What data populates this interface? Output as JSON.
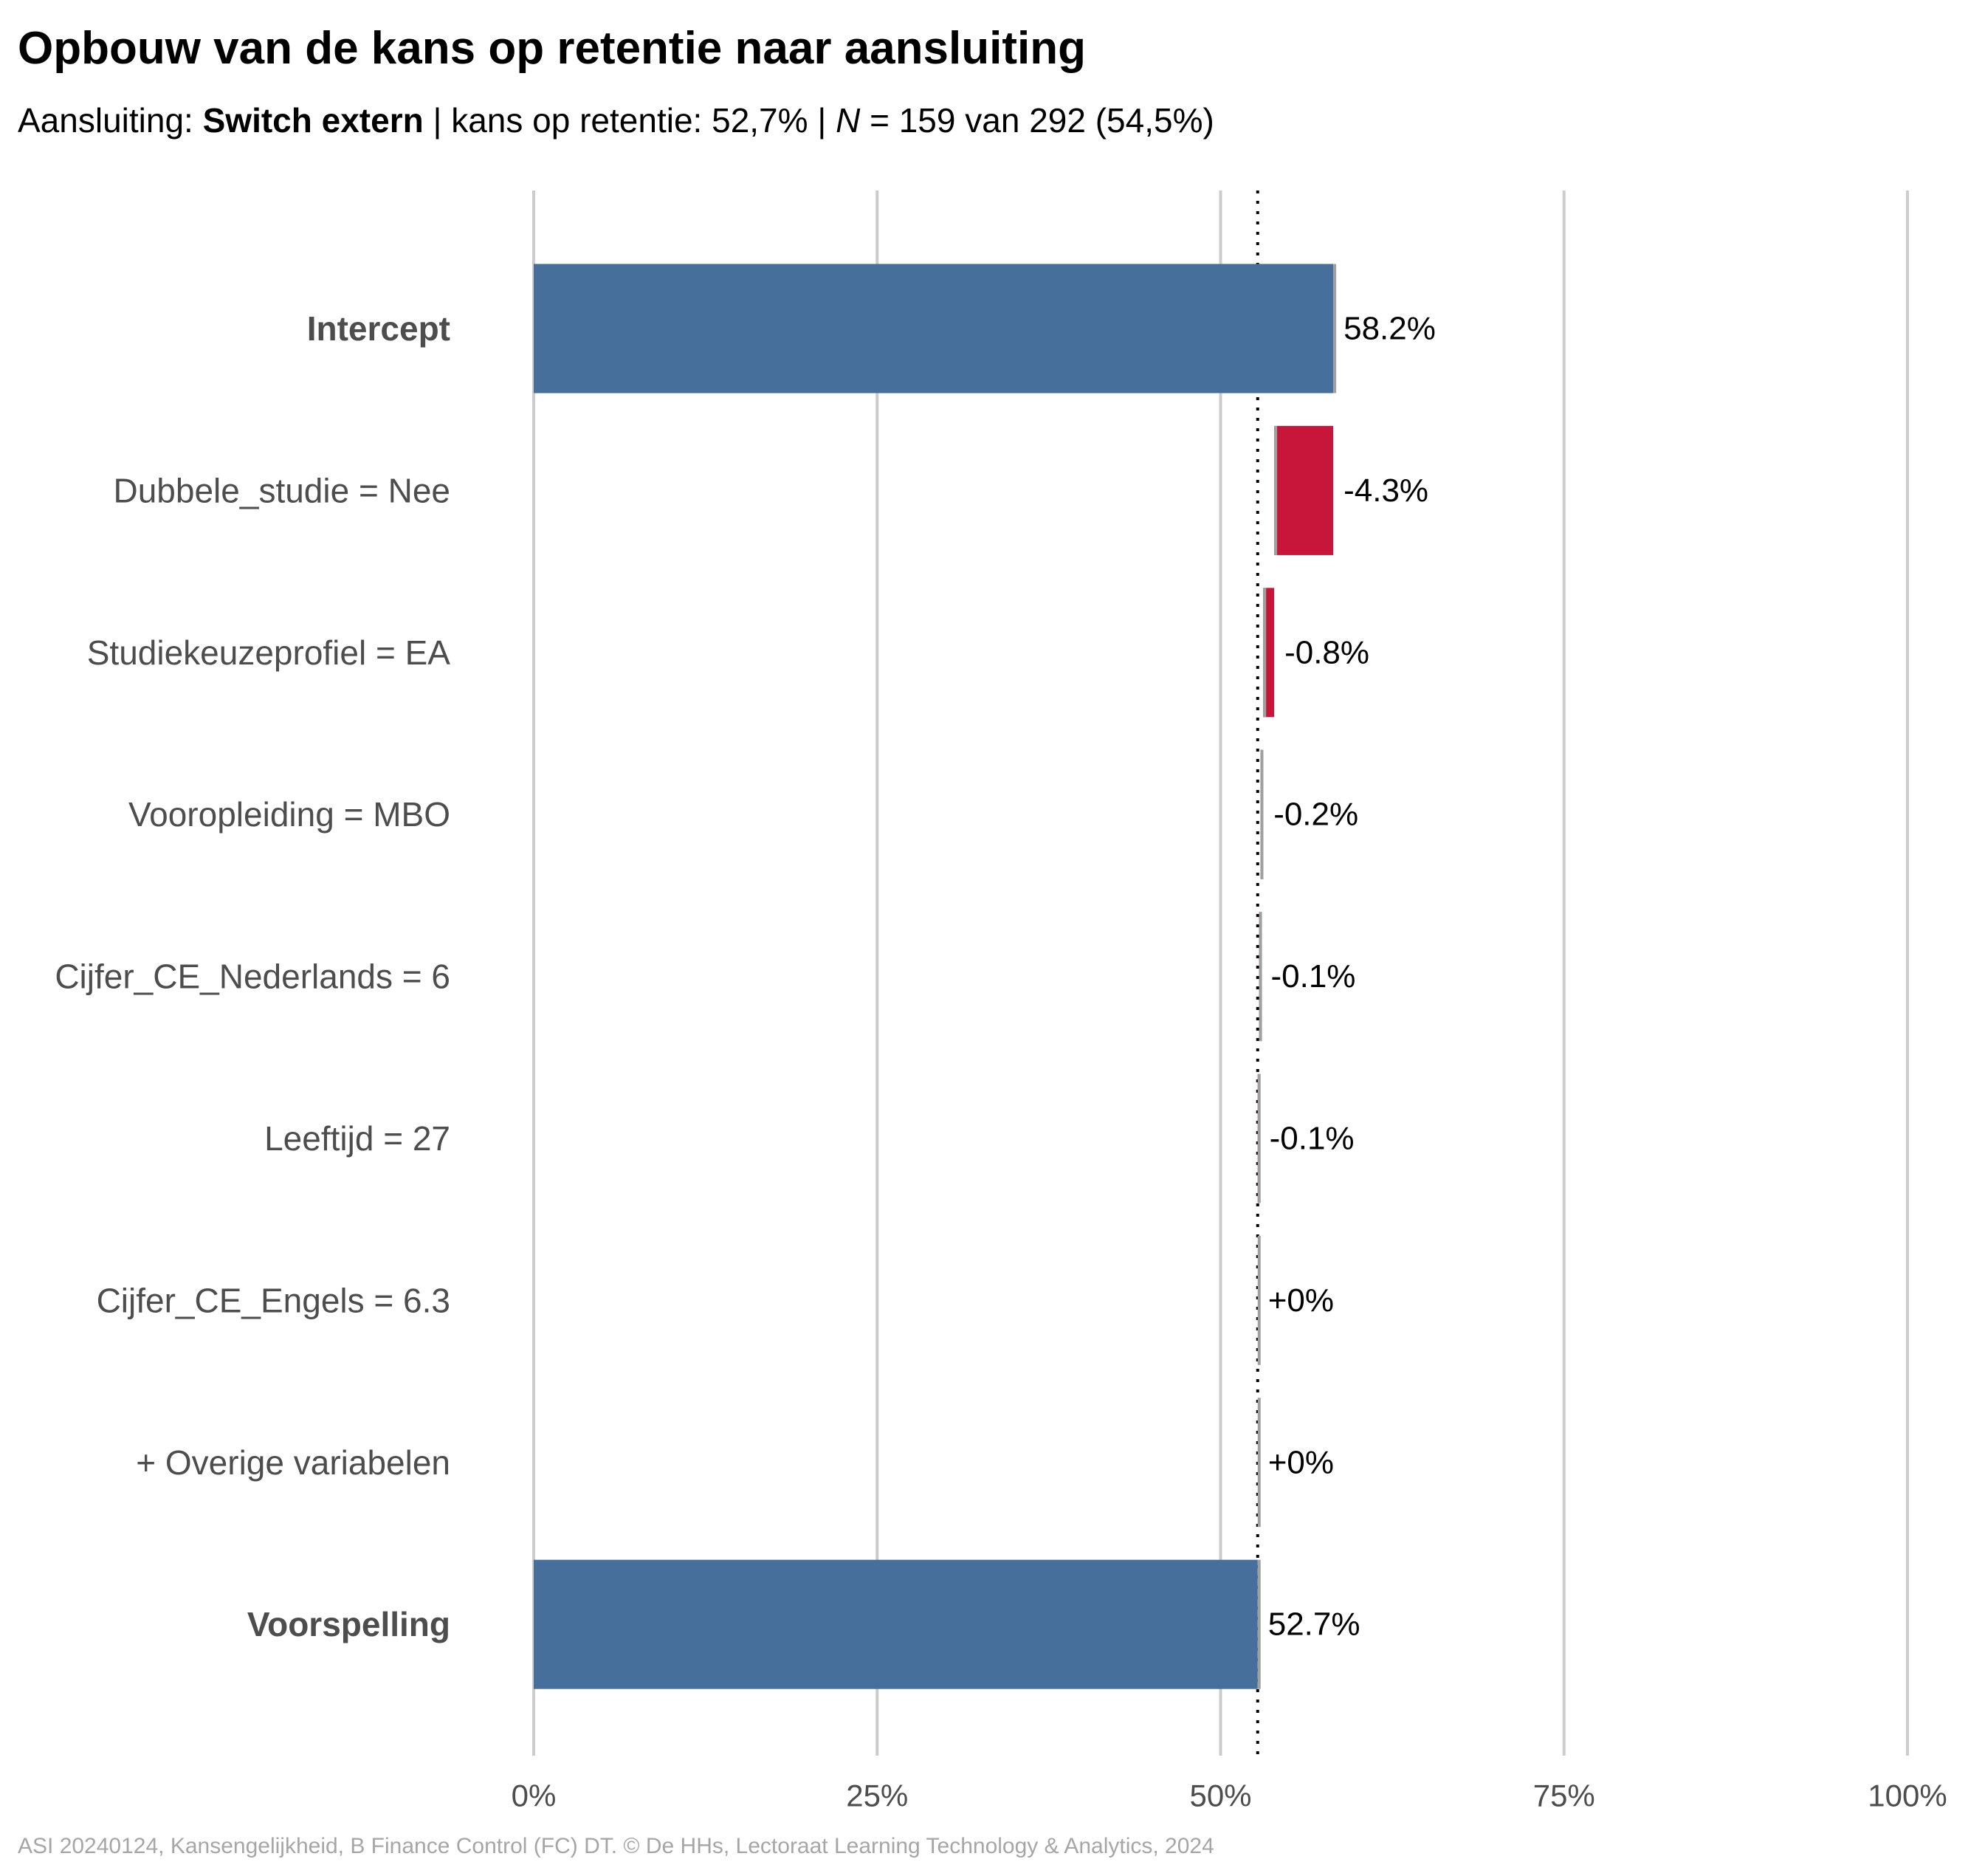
{
  "title": "Opbouw van de kans op retentie naar aansluiting",
  "subtitle": {
    "prefix": "Aansluiting: ",
    "group": "Switch extern",
    "sep1": " | kans op retentie: ",
    "probability": "52,7%",
    "sep2": " | ",
    "n_symbol": "N",
    "n_text": " = 159 van 292 (54,5%)"
  },
  "caption": "ASI 20240124, Kansengelijkheid, B Finance Control (FC) DT. © De HHs, Lectoraat Learning Technology & Analytics, 2024",
  "colors": {
    "base": "#476f9b",
    "negative": "#c8163b",
    "grid": "#cccccc",
    "connector": "#a0a0a0"
  },
  "chart_data": {
    "type": "bar",
    "orientation": "horizontal",
    "subtype": "waterfall",
    "xlim": [
      0,
      100
    ],
    "x_ticks": [
      "0%",
      "25%",
      "50%",
      "75%",
      "100%"
    ],
    "x_tick_values": [
      0,
      25,
      50,
      75,
      100
    ],
    "reference_line": 52.7,
    "grid": true,
    "rows": [
      {
        "label": "Intercept",
        "kind": "total",
        "start": 0,
        "end": 58.2,
        "value_label": "58.2%",
        "bold": true
      },
      {
        "label": "Dubbele_studie = Nee",
        "kind": "delta",
        "start": 58.2,
        "end": 53.9,
        "value_label": "-4.3%",
        "bold": false
      },
      {
        "label": "Studiekeuzeprofiel = EA",
        "kind": "delta",
        "start": 53.9,
        "end": 53.1,
        "value_label": "-0.8%",
        "bold": false
      },
      {
        "label": "Vooropleiding = MBO",
        "kind": "delta",
        "start": 53.1,
        "end": 52.9,
        "value_label": "-0.2%",
        "bold": false
      },
      {
        "label": "Cijfer_CE_Nederlands = 6",
        "kind": "delta",
        "start": 52.9,
        "end": 52.8,
        "value_label": "-0.1%",
        "bold": false
      },
      {
        "label": "Leeftijd = 27",
        "kind": "delta",
        "start": 52.8,
        "end": 52.7,
        "value_label": "-0.1%",
        "bold": false
      },
      {
        "label": "Cijfer_CE_Engels = 6.3",
        "kind": "delta",
        "start": 52.7,
        "end": 52.7,
        "value_label": "+0%",
        "bold": false
      },
      {
        "label": "+ Overige variabelen",
        "kind": "delta",
        "start": 52.7,
        "end": 52.7,
        "value_label": "+0%",
        "bold": false
      },
      {
        "label": "Voorspelling",
        "kind": "total",
        "start": 0,
        "end": 52.7,
        "value_label": "52.7%",
        "bold": true
      }
    ]
  }
}
